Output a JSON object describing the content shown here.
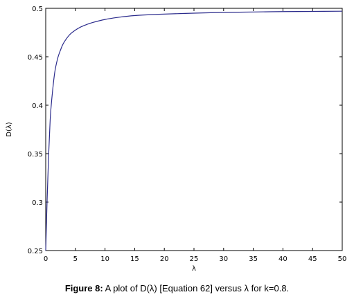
{
  "caption": {
    "prefix": "Figure 8:",
    "text": "A plot of D(λ) [Equation 62] versus λ for k=0.8."
  },
  "chart_data": {
    "type": "line",
    "xlabel": "λ",
    "ylabel": "D(λ)",
    "xlim": [
      0,
      50
    ],
    "ylim": [
      0.25,
      0.5
    ],
    "xticks": [
      0,
      5,
      10,
      15,
      20,
      25,
      30,
      35,
      40,
      45,
      50
    ],
    "yticks": [
      0.25,
      0.3,
      0.35,
      0.4,
      0.45,
      0.5
    ],
    "ytick_labels": [
      "0.25",
      "0.3",
      "0.35",
      "0.4",
      "0.45",
      "0.5"
    ],
    "grid": false,
    "line_color": "#2b2b8c",
    "series": [
      {
        "x": [
          0,
          0.25,
          0.5,
          0.75,
          1,
          1.5,
          2,
          2.5,
          3,
          4,
          5,
          6,
          7,
          8,
          10,
          12,
          15,
          20,
          25,
          30,
          35,
          40,
          45,
          50
        ],
        "y": [
          0.25,
          0.305,
          0.35,
          0.385,
          0.405,
          0.433,
          0.448,
          0.457,
          0.464,
          0.4725,
          0.4775,
          0.481,
          0.4835,
          0.4855,
          0.4885,
          0.4905,
          0.4925,
          0.494,
          0.495,
          0.4957,
          0.4962,
          0.4966,
          0.4968,
          0.497
        ]
      }
    ]
  }
}
